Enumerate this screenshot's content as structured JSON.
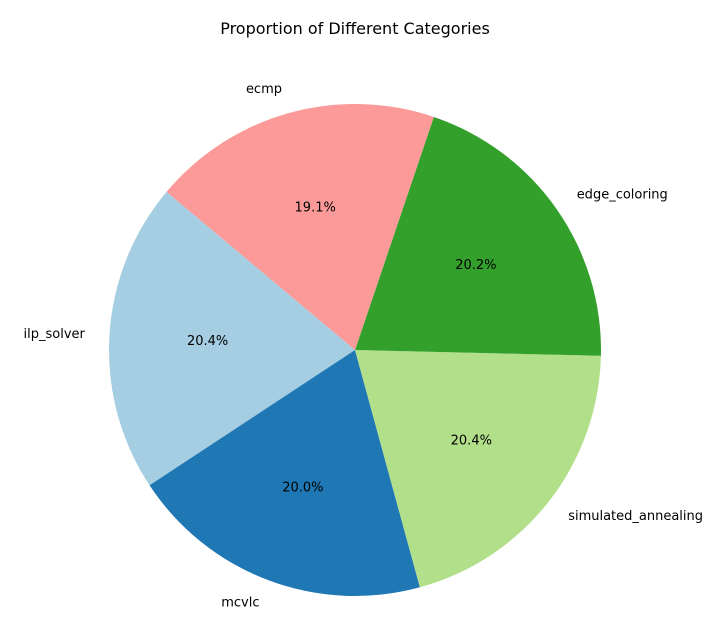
{
  "chart_data": {
    "type": "pie",
    "title": "Proportion of Different Categories",
    "start_angle_deg": 140,
    "direction": "counterclockwise",
    "slices": [
      {
        "label": "ilp_solver",
        "value": 20.4,
        "pct_label": "20.4%",
        "color": "#a6cee3"
      },
      {
        "label": "mcvlc",
        "value": 20.0,
        "pct_label": "20.0%",
        "color": "#1f78b4"
      },
      {
        "label": "simulated_annealing",
        "value": 20.4,
        "pct_label": "20.4%",
        "color": "#b2df8a"
      },
      {
        "label": "edge_coloring",
        "value": 20.2,
        "pct_label": "20.2%",
        "color": "#33a02c"
      },
      {
        "label": "ecmp",
        "value": 19.1,
        "pct_label": "19.1%",
        "color": "#fb9a99"
      }
    ]
  }
}
